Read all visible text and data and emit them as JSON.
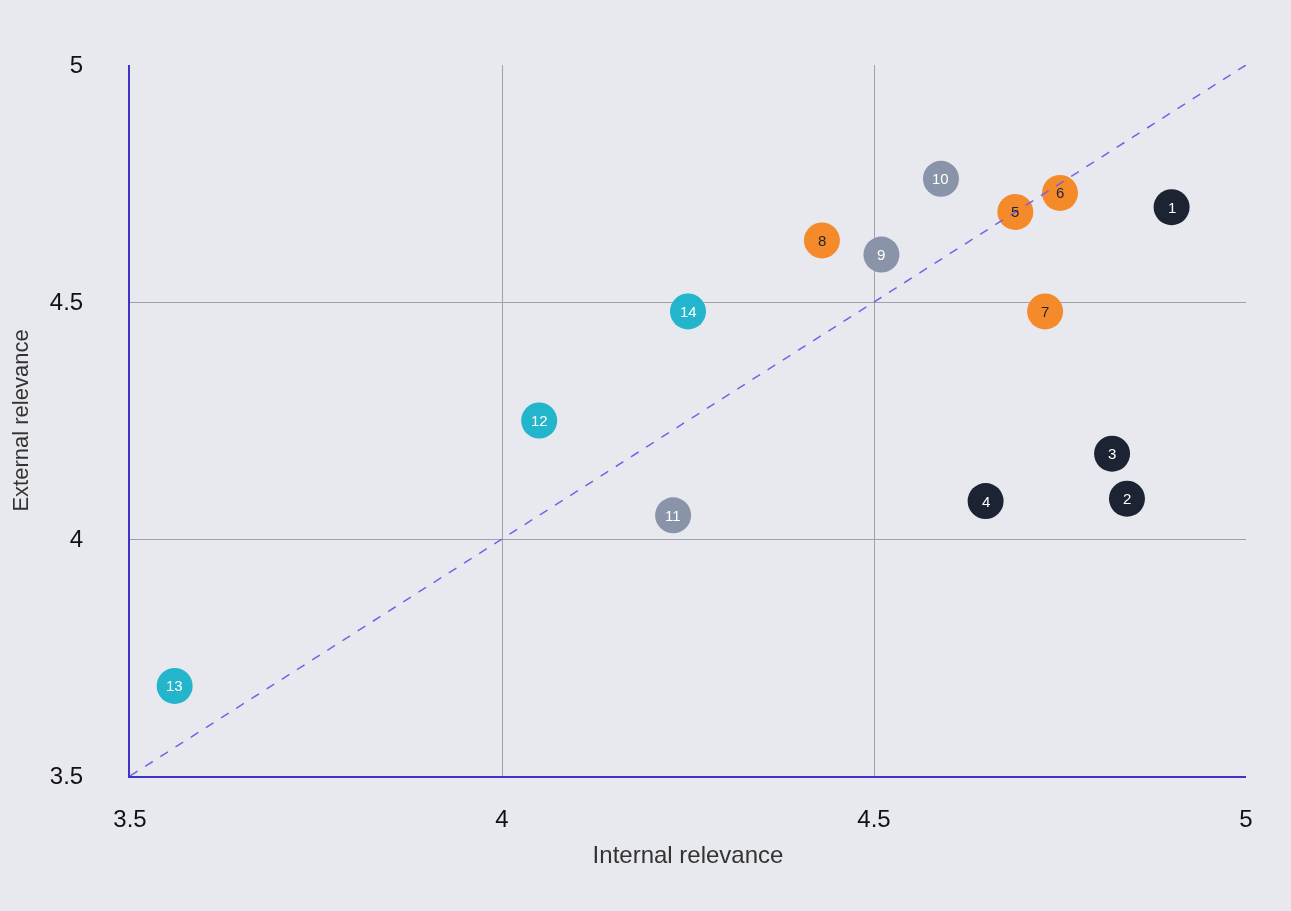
{
  "chart_data": {
    "type": "scatter",
    "xlabel": "Internal relevance",
    "ylabel": "External relevance",
    "xlim": [
      3.5,
      5
    ],
    "ylim": [
      3.5,
      5
    ],
    "xticks": [
      3.5,
      4,
      4.5,
      5
    ],
    "yticks": [
      3.5,
      4,
      4.5,
      5
    ],
    "grid": true,
    "marker": "circle",
    "series": [
      {
        "color": "#1c2333",
        "x": [
          4.9,
          4.84,
          4.82,
          4.65
        ],
        "values": [
          4.7,
          4.085,
          4.18,
          4.08
        ]
      },
      {
        "color": "#f58a2a",
        "x": [
          4.69,
          4.75,
          4.73,
          4.43
        ],
        "values": [
          4.69,
          4.73,
          4.48,
          4.63
        ]
      },
      {
        "color": "#8a94a8",
        "x": [
          4.51,
          4.59,
          4.23
        ],
        "values": [
          4.6,
          4.76,
          4.05
        ]
      },
      {
        "color": "#22b5cc",
        "x": [
          4.05,
          3.56,
          4.25
        ],
        "values": [
          4.25,
          3.69,
          4.48
        ]
      },
      {
        "type": "line",
        "color": "#6f63ea",
        "line_style": "dashed",
        "marker": "none",
        "x": [
          3.5,
          5
        ],
        "values": [
          3.5,
          5
        ]
      }
    ],
    "annotations": [
      {
        "text": "1",
        "x": 4.9,
        "y": 4.7
      },
      {
        "text": "2",
        "x": 4.84,
        "y": 4.085
      },
      {
        "text": "3",
        "x": 4.82,
        "y": 4.18
      },
      {
        "text": "4",
        "x": 4.65,
        "y": 4.08
      },
      {
        "text": "5",
        "x": 4.69,
        "y": 4.69
      },
      {
        "text": "6",
        "x": 4.75,
        "y": 4.73
      },
      {
        "text": "7",
        "x": 4.73,
        "y": 4.48
      },
      {
        "text": "8",
        "x": 4.43,
        "y": 4.63
      },
      {
        "text": "9",
        "x": 4.51,
        "y": 4.6
      },
      {
        "text": "10",
        "x": 4.59,
        "y": 4.76
      },
      {
        "text": "11",
        "x": 4.23,
        "y": 4.05
      },
      {
        "text": "12",
        "x": 4.05,
        "y": 4.25
      },
      {
        "text": "13",
        "x": 3.56,
        "y": 3.69
      },
      {
        "text": "14",
        "x": 4.25,
        "y": 4.48
      }
    ]
  }
}
